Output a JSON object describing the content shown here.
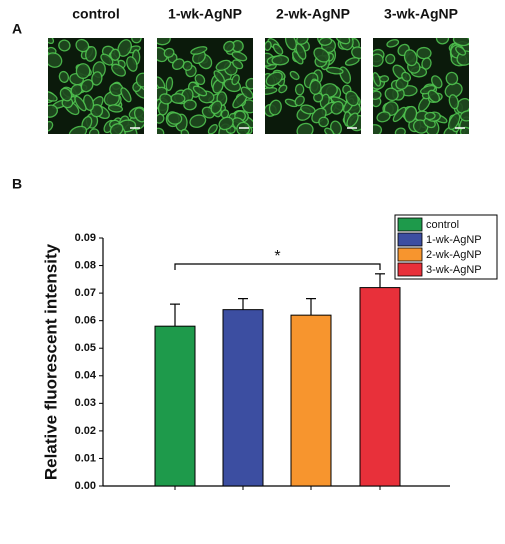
{
  "panel_a": {
    "label": "A",
    "titles": [
      "control",
      "1-wk-AgNP",
      "2-wk-AgNP",
      "3-wk-AgNP"
    ]
  },
  "chart_data": {
    "type": "bar",
    "panel_label": "B",
    "y_label": "Relative fluorescent intensity",
    "categories": [
      "control",
      "1-wk-AgNP",
      "2-wk-AgNP",
      "3-wk-AgNP"
    ],
    "values": [
      0.058,
      0.064,
      0.062,
      0.072
    ],
    "errors": [
      0.008,
      0.004,
      0.006,
      0.005
    ],
    "colors": [
      "#1e9a4b",
      "#3c4ea1",
      "#f7952e",
      "#e8303a"
    ],
    "ylim": [
      0,
      0.09
    ],
    "yticks": [
      {
        "value": 0,
        "label": "0.00"
      },
      {
        "value": 0.01,
        "label": "0.01"
      },
      {
        "value": 0.02,
        "label": "0.02"
      },
      {
        "value": 0.03,
        "label": "0.03"
      },
      {
        "value": 0.04,
        "label": "0.04"
      },
      {
        "value": 0.05,
        "label": "0.05"
      },
      {
        "value": 0.06,
        "label": "0.06"
      },
      {
        "value": 0.07,
        "label": "0.07"
      },
      {
        "value": 0.08,
        "label": "0.08"
      },
      {
        "value": 0.09,
        "label": "0.09"
      }
    ],
    "annotation": "*",
    "legend": "top-right"
  }
}
